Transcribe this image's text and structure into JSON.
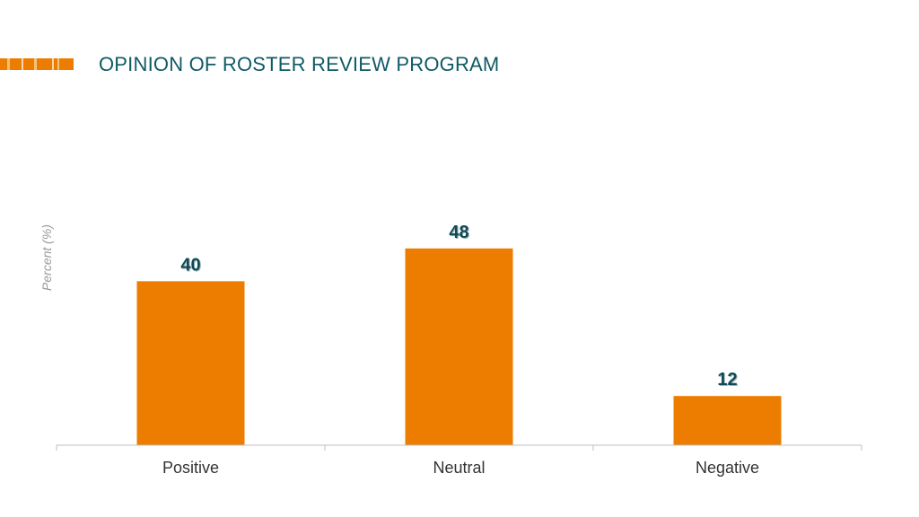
{
  "slide": {
    "title": "OPINION OF ROSTER REVIEW PROGRAM"
  },
  "colors": {
    "bar": "#ed7d00",
    "title": "#0f5a64",
    "data_label": "#0f4a57",
    "axis": "#bfbfbf",
    "decor": "#ed7d00"
  },
  "chart_data": {
    "type": "bar",
    "categories": [
      "Positive",
      "Neutral",
      "Negative"
    ],
    "values": [
      40,
      48,
      12
    ],
    "title": "",
    "xlabel": "",
    "ylabel": "Percent (%)",
    "ylim": [
      0,
      60
    ],
    "grid": false,
    "data_labels": true
  }
}
